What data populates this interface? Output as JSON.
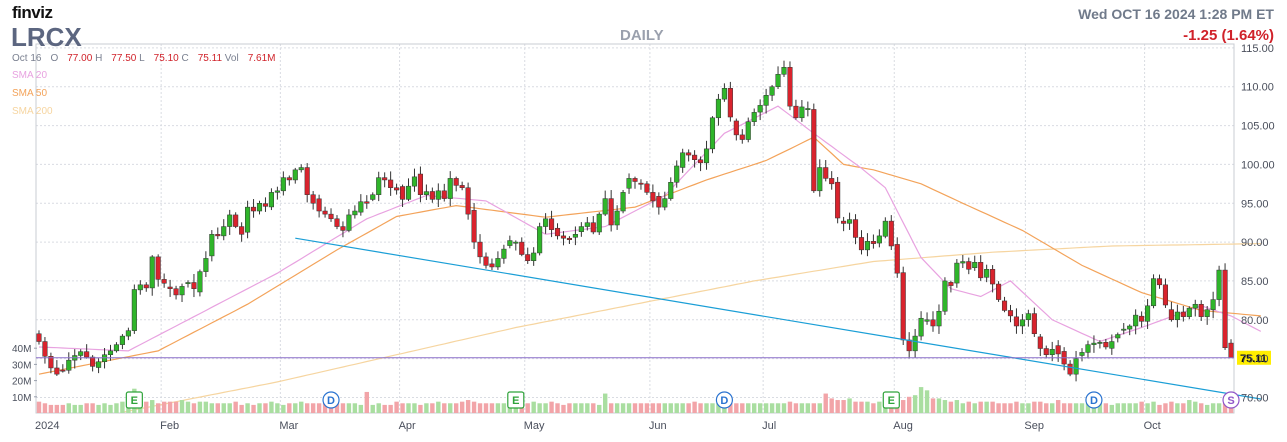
{
  "header": {
    "logo": "finviz",
    "ticker": "LRCX",
    "timeframe": "DAILY",
    "datetime": "Wed OCT 16 2024 1:28 PM ET",
    "change": "-1.25 (1.64%)",
    "ohlc": {
      "date": "Oct 16",
      "o_label": "O",
      "o_value": "77.00",
      "h_label": "H",
      "h_value": "77.50",
      "l_label": "L",
      "l_value": "75.10",
      "c_label": "C",
      "c_value": "75.11",
      "vol_label": "Vol",
      "vol_value": "7.61M"
    },
    "sma_labels": [
      "SMA 20",
      "SMA 50",
      "SMA 200"
    ]
  },
  "colors": {
    "up": "#2fb52a",
    "down": "#d9232d",
    "vol_up": "#a9dea0",
    "vol_down": "#f2a4a8",
    "sma20": "#e8a2e0",
    "sma50": "#f3a35a",
    "sma200": "#f6d5a0",
    "trendline": "#1a9ed6",
    "price_line": "#8a6fc9",
    "price_badge": "#ffee00"
  },
  "chart_data": {
    "type": "candlestick",
    "title": "LRCX",
    "y_axis": {
      "side": "right",
      "ylim": [
        68,
        115.5
      ],
      "ticks": [
        "115.00",
        "110.00",
        "105.00",
        "100.00",
        "95.00",
        "90.00",
        "85.00",
        "80.00",
        "75.00",
        "70.00"
      ],
      "last_price": "75.11"
    },
    "x_axis": {
      "labels": [
        {
          "label": "2024",
          "index": 0
        },
        {
          "label": "Feb",
          "index": 21
        },
        {
          "label": "Mar",
          "index": 41
        },
        {
          "label": "Apr",
          "index": 61
        },
        {
          "label": "May",
          "index": 82
        },
        {
          "label": "Jun",
          "index": 103
        },
        {
          "label": "Jul",
          "index": 122
        },
        {
          "label": "Aug",
          "index": 144
        },
        {
          "label": "Sep",
          "index": 166
        },
        {
          "label": "Oct",
          "index": 186
        }
      ]
    },
    "volume_axis": {
      "ticks": [
        "40M",
        "30M",
        "20M",
        "10M"
      ],
      "max": 40
    },
    "grid": true,
    "closes": [
      77.2,
      75.3,
      73.8,
      73.0,
      73.5,
      74.8,
      75.4,
      75.9,
      75.2,
      74.0,
      74.6,
      75.5,
      76.0,
      76.8,
      77.9,
      78.6,
      83.9,
      84.5,
      84.1,
      88.1,
      85.2,
      84.7,
      84.0,
      83.2,
      84.3,
      84.8,
      84.0,
      86.2,
      87.9,
      91.0,
      90.8,
      92.0,
      93.5,
      92.0,
      91.0,
      94.5,
      94.0,
      95.0,
      94.6,
      96.4,
      96.6,
      98.3,
      98.0,
      99.3,
      99.6,
      96.1,
      95.0,
      94.0,
      93.6,
      93.0,
      92.0,
      91.5,
      93.5,
      94.0,
      95.2,
      95.0,
      96.1,
      98.3,
      98.0,
      97.0,
      96.7,
      95.5,
      97.2,
      98.4,
      96.1,
      96.5,
      95.5,
      96.6,
      95.6,
      98.2,
      97.3,
      97.0,
      93.6,
      90.0,
      88.1,
      87.0,
      86.8,
      87.9,
      89.1,
      90.2,
      90.0,
      88.4,
      87.6,
      88.6,
      92.0,
      93.0,
      91.6,
      90.8,
      90.5,
      90.3,
      91.0,
      92.0,
      92.5,
      91.3,
      93.6,
      95.6,
      92.2,
      94.0,
      96.4,
      98.2,
      97.8,
      97.5,
      96.4,
      95.3,
      94.5,
      95.6,
      97.7,
      99.8,
      101.5,
      101.2,
      100.6,
      100.2,
      102.0,
      106.0,
      108.4,
      109.8,
      106.1,
      103.8,
      103.2,
      105.5,
      106.7,
      107.6,
      108.9,
      110.0,
      111.6,
      112.5,
      107.5,
      106.0,
      107.4,
      107.2,
      96.6,
      99.6,
      98.2,
      97.5,
      93.1,
      92.4,
      92.9,
      90.6,
      89.0,
      90.1,
      89.8,
      90.8,
      92.7,
      89.5,
      86.0,
      77.4,
      76.0,
      77.9,
      80.2,
      80.0,
      79.2,
      81.1,
      85.0,
      84.4,
      87.3,
      87.5,
      86.5,
      87.4,
      85.4,
      86.5,
      84.6,
      82.6,
      81.2,
      80.5,
      79.2,
      80.0,
      80.8,
      78.2,
      76.3,
      75.5,
      76.2,
      75.6,
      74.3,
      73.0,
      75.0,
      75.8,
      76.8,
      77.0,
      77.1,
      76.5,
      77.2,
      78.1,
      78.8,
      79.2,
      80.6,
      79.8,
      81.8,
      85.3,
      84.5,
      81.9,
      80.0,
      81.0,
      80.4,
      81.5,
      82.0,
      80.4,
      81.3,
      82.6,
      86.4,
      76.4,
      75.11
    ],
    "volumes_m": [
      7,
      6,
      5,
      5,
      5,
      6,
      5,
      5,
      6,
      6,
      5,
      6,
      5,
      6,
      7,
      8,
      15,
      9,
      7,
      8,
      6,
      7,
      7,
      7,
      8,
      7,
      6,
      7,
      7,
      6,
      6,
      6,
      6,
      7,
      5,
      6,
      5,
      6,
      6,
      7,
      6,
      5,
      6,
      6,
      7,
      6,
      6,
      6,
      6,
      6,
      6,
      6,
      6,
      6,
      5,
      13,
      5,
      6,
      5,
      5,
      7,
      6,
      6,
      6,
      5,
      6,
      6,
      7,
      6,
      6,
      6,
      7,
      8,
      7,
      6,
      6,
      6,
      6,
      6,
      6,
      6,
      6,
      6,
      7,
      6,
      6,
      7,
      6,
      5,
      6,
      6,
      6,
      6,
      6,
      5,
      12,
      6,
      6,
      6,
      6,
      6,
      6,
      6,
      6,
      6,
      6,
      6,
      6,
      6,
      6,
      7,
      6,
      6,
      6,
      6,
      6,
      6,
      6,
      6,
      6,
      6,
      6,
      6,
      6,
      6,
      6,
      7,
      6,
      6,
      6,
      6,
      6,
      12,
      9,
      8,
      8,
      9,
      7,
      7,
      7,
      6,
      7,
      6,
      6,
      6,
      8,
      10,
      11,
      16,
      14,
      9,
      9,
      8,
      7,
      8,
      6,
      7,
      6,
      7,
      7,
      7,
      6,
      6,
      6,
      7,
      6,
      6,
      7,
      7,
      6,
      6,
      8,
      6,
      6,
      6,
      6,
      6,
      7,
      6,
      6,
      5,
      6,
      6,
      6,
      6,
      7,
      6,
      7,
      5,
      6,
      7,
      6,
      6,
      8,
      7,
      6,
      5,
      6,
      6,
      6,
      5,
      6,
      6,
      6,
      5,
      5,
      6,
      6,
      13,
      6
    ],
    "sma20_anchors": [
      [
        0,
        76.5
      ],
      [
        15,
        76.0
      ],
      [
        25,
        80.0
      ],
      [
        40,
        86.0
      ],
      [
        55,
        93.0
      ],
      [
        65,
        96.0
      ],
      [
        75,
        95.3
      ],
      [
        85,
        91.0
      ],
      [
        95,
        92.0
      ],
      [
        105,
        96.0
      ],
      [
        115,
        104.0
      ],
      [
        124,
        107.5
      ],
      [
        130,
        104.0
      ],
      [
        138,
        99.5
      ],
      [
        142,
        97.0
      ],
      [
        148,
        88.0
      ],
      [
        153,
        84.0
      ],
      [
        158,
        83.0
      ],
      [
        163,
        85.0
      ],
      [
        170,
        80.0
      ],
      [
        178,
        77.2
      ],
      [
        185,
        79.0
      ],
      [
        195,
        81.8
      ],
      [
        200,
        80.5
      ],
      [
        205,
        78.5
      ]
    ],
    "sma50_anchors": [
      [
        0,
        73.0
      ],
      [
        20,
        76.0
      ],
      [
        35,
        82.0
      ],
      [
        50,
        89.0
      ],
      [
        60,
        93.3
      ],
      [
        70,
        94.7
      ],
      [
        85,
        93.2
      ],
      [
        100,
        94.5
      ],
      [
        112,
        98.0
      ],
      [
        122,
        100.5
      ],
      [
        130,
        103.5
      ],
      [
        135,
        100.0
      ],
      [
        140,
        99.3
      ],
      [
        148,
        97.5
      ],
      [
        155,
        95.0
      ],
      [
        165,
        91.5
      ],
      [
        175,
        87.0
      ],
      [
        185,
        83.5
      ],
      [
        195,
        81.2
      ],
      [
        205,
        80.5
      ]
    ],
    "sma200_anchors": [
      [
        0,
        66.0
      ],
      [
        40,
        72.0
      ],
      [
        80,
        79.0
      ],
      [
        120,
        85.0
      ],
      [
        140,
        87.5
      ],
      [
        160,
        88.7
      ],
      [
        180,
        89.5
      ],
      [
        205,
        89.8
      ]
    ],
    "trendline": {
      "from": {
        "index": 43,
        "value": 90.5
      },
      "to": {
        "index": 205,
        "value": 69.8
      }
    },
    "events": [
      {
        "type": "E",
        "index": 16
      },
      {
        "type": "D",
        "index": 49
      },
      {
        "type": "E",
        "index": 80
      },
      {
        "type": "D",
        "index": 115
      },
      {
        "type": "E",
        "index": 143
      },
      {
        "type": "D",
        "index": 177
      },
      {
        "type": "S",
        "index": 200
      }
    ]
  }
}
